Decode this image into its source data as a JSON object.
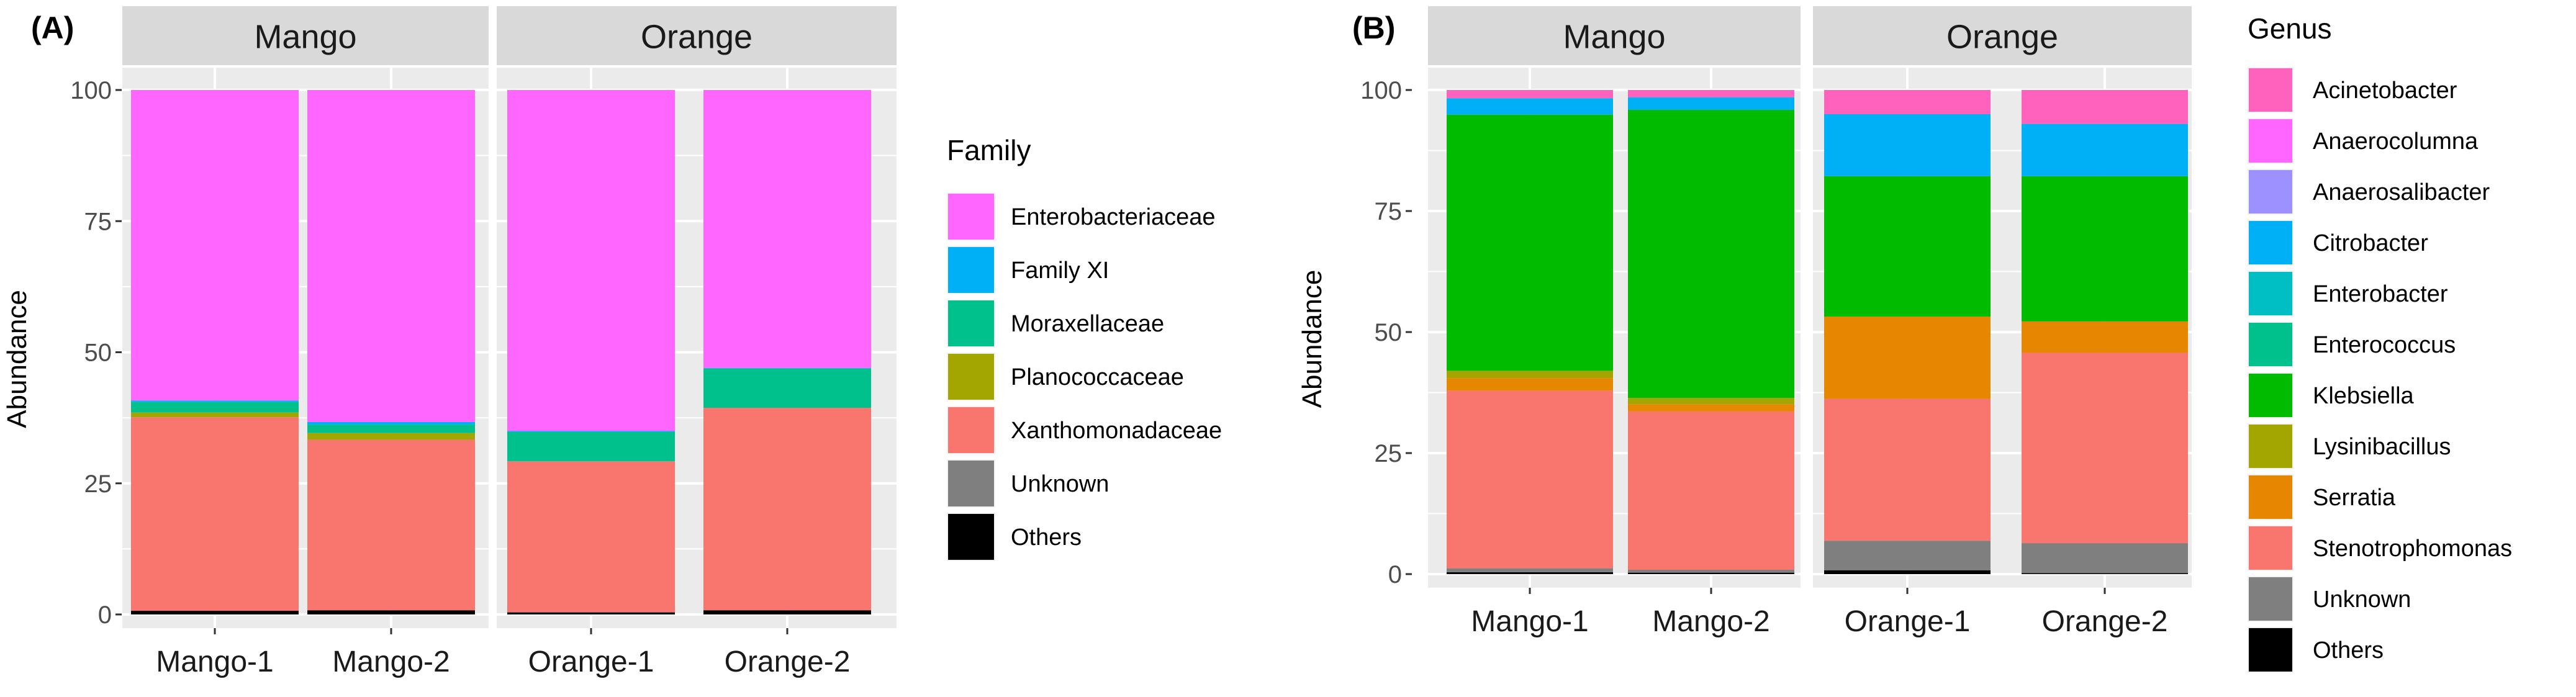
{
  "colors": {
    "panel_bg": "#ebebeb",
    "grid": "#ffffff",
    "strip_bg": "#d9d9d9"
  },
  "chart_data": [
    {
      "type": "bar",
      "stacked": true,
      "panel_label": "(A)",
      "title": "",
      "xlabel": "",
      "ylabel": "Abundance",
      "ylim": [
        0,
        100
      ],
      "yticks": [
        0,
        25,
        50,
        75,
        100
      ],
      "grid": true,
      "legend_title": "Family",
      "legend_position": "right",
      "facets": [
        {
          "label": "Mango",
          "categories": [
            "Mango-1",
            "Mango-2"
          ]
        },
        {
          "label": "Orange",
          "categories": [
            "Orange-1",
            "Orange-2"
          ]
        }
      ],
      "categories": [
        "Mango-1",
        "Mango-2",
        "Orange-1",
        "Orange-2"
      ],
      "stack_order_bottom_to_top": [
        "Others",
        "Unknown",
        "Xanthomonadaceae",
        "Planococcaceae",
        "Moraxellaceae",
        "Family XI",
        "Enterobacteriaceae"
      ],
      "series": [
        {
          "name": "Enterobacteriaceae",
          "color": "#ff66ff",
          "values": [
            59.2,
            63.3,
            65.0,
            53.0
          ]
        },
        {
          "name": "Family XI",
          "color": "#00b0f6",
          "values": [
            0.3,
            0.5,
            0.2,
            0.1
          ]
        },
        {
          "name": "Moraxellaceae",
          "color": "#00c08b",
          "values": [
            2.0,
            1.6,
            5.6,
            7.5
          ]
        },
        {
          "name": "Planococcaceae",
          "color": "#a3a500",
          "values": [
            0.9,
            1.3,
            0.0,
            0.0
          ]
        },
        {
          "name": "Xanthomonadaceae",
          "color": "#f8766d",
          "values": [
            36.9,
            32.5,
            28.8,
            38.6
          ]
        },
        {
          "name": "Unknown",
          "color": "#7f7f7f",
          "values": [
            0.0,
            0.0,
            0.0,
            0.0
          ]
        },
        {
          "name": "Others",
          "color": "#000000",
          "values": [
            0.7,
            0.8,
            0.4,
            0.8
          ]
        }
      ]
    },
    {
      "type": "bar",
      "stacked": true,
      "panel_label": "(B)",
      "title": "",
      "xlabel": "",
      "ylabel": "Abundance",
      "ylim": [
        0,
        100
      ],
      "yticks": [
        0,
        25,
        50,
        75,
        100
      ],
      "grid": true,
      "legend_title": "Genus",
      "legend_position": "right",
      "facets": [
        {
          "label": "Mango",
          "categories": [
            "Mango-1",
            "Mango-2"
          ]
        },
        {
          "label": "Orange",
          "categories": [
            "Orange-1",
            "Orange-2"
          ]
        }
      ],
      "categories": [
        "Mango-1",
        "Mango-2",
        "Orange-1",
        "Orange-2"
      ],
      "stack_order_bottom_to_top": [
        "Others",
        "Unknown",
        "Stenotrophomonas",
        "Serratia",
        "Lysinibacillus",
        "Klebsiella",
        "Enterococcus",
        "Enterobacter",
        "Citrobacter",
        "Anaerosalibacter",
        "Anaerocolumna",
        "Acinetobacter"
      ],
      "series": [
        {
          "name": "Acinetobacter",
          "color": "#ff62bc",
          "values": [
            1.7,
            1.5,
            5.0,
            7.0
          ]
        },
        {
          "name": "Anaerocolumna",
          "color": "#ff66ff",
          "values": [
            0.0,
            0.0,
            0.0,
            0.0
          ]
        },
        {
          "name": "Anaerosalibacter",
          "color": "#9d91ff",
          "values": [
            0.0,
            0.0,
            0.0,
            0.0
          ]
        },
        {
          "name": "Citrobacter",
          "color": "#00b0f6",
          "values": [
            3.4,
            2.6,
            12.8,
            10.8
          ]
        },
        {
          "name": "Enterobacter",
          "color": "#00bfc4",
          "values": [
            0.0,
            0.0,
            0.0,
            0.0
          ]
        },
        {
          "name": "Enterococcus",
          "color": "#00c08b",
          "values": [
            0.0,
            0.0,
            0.0,
            0.0
          ]
        },
        {
          "name": "Klebsiella",
          "color": "#00bb00",
          "values": [
            52.9,
            59.5,
            29.0,
            30.0
          ]
        },
        {
          "name": "Lysinibacillus",
          "color": "#a3a500",
          "values": [
            1.5,
            1.3,
            0.0,
            0.0
          ]
        },
        {
          "name": "Serratia",
          "color": "#e58700",
          "values": [
            2.6,
            1.5,
            17.0,
            6.5
          ]
        },
        {
          "name": "Stenotrophomonas",
          "color": "#f8766d",
          "values": [
            36.7,
            32.7,
            29.3,
            39.3
          ]
        },
        {
          "name": "Unknown",
          "color": "#7f7f7f",
          "values": [
            0.8,
            0.6,
            6.1,
            6.2
          ]
        },
        {
          "name": "Others",
          "color": "#000000",
          "values": [
            0.4,
            0.3,
            0.8,
            0.2
          ]
        }
      ]
    }
  ]
}
